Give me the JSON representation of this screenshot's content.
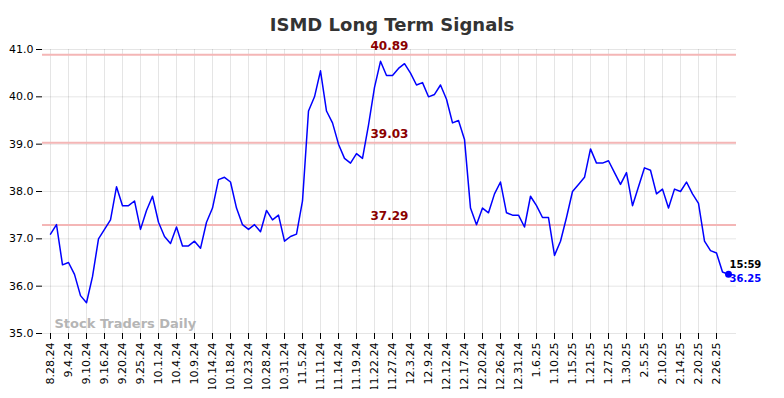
{
  "chart_data": {
    "type": "line",
    "title": "ISMD Long Term Signals",
    "categories": [
      "8.28.24",
      null,
      null,
      "9.4.24",
      null,
      null,
      "9.10.24",
      null,
      null,
      "9.16.24",
      null,
      null,
      "9.20.24",
      null,
      null,
      "9.25.24",
      null,
      null,
      "10.1.24",
      null,
      null,
      "10.4.24",
      null,
      null,
      "10.9.24",
      null,
      null,
      "10.14.24",
      null,
      null,
      "10.18.24",
      null,
      null,
      "10.23.24",
      null,
      null,
      "10.28.24",
      null,
      null,
      "10.31.24",
      null,
      null,
      "11.5.24",
      null,
      null,
      "11.11.24",
      null,
      null,
      "11.14.24",
      null,
      null,
      "11.19.24",
      null,
      null,
      "11.22.24",
      null,
      null,
      "11.27.24",
      null,
      null,
      "12.3.24",
      null,
      null,
      "12.9.24",
      null,
      null,
      "12.12.24",
      null,
      null,
      "12.17.24",
      null,
      null,
      "12.20.24",
      null,
      null,
      "12.26.24",
      null,
      null,
      "12.31.24",
      null,
      null,
      "1.6.25",
      null,
      null,
      "1.10.25",
      null,
      null,
      "1.15.25",
      null,
      null,
      "1.21.25",
      null,
      null,
      "1.27.25",
      null,
      null,
      "1.30.25",
      null,
      null,
      "2.5.25",
      null,
      null,
      "2.10.25",
      null,
      null,
      "2.14.25",
      null,
      null,
      "2.20.25",
      null,
      null,
      "2.26.25",
      null,
      null
    ],
    "values": [
      37.1,
      37.3,
      36.45,
      36.5,
      36.25,
      35.8,
      35.65,
      36.2,
      37.0,
      37.2,
      37.4,
      38.1,
      37.7,
      37.7,
      37.8,
      37.2,
      37.6,
      37.9,
      37.35,
      37.05,
      36.9,
      37.25,
      36.85,
      36.85,
      36.95,
      36.8,
      37.35,
      37.65,
      38.25,
      38.3,
      38.2,
      37.65,
      37.3,
      37.2,
      37.3,
      37.15,
      37.6,
      37.4,
      37.5,
      36.95,
      37.05,
      37.1,
      37.8,
      39.7,
      40.0,
      40.55,
      39.7,
      39.45,
      39.0,
      38.7,
      38.6,
      38.8,
      38.7,
      39.4,
      40.2,
      40.75,
      40.45,
      40.45,
      40.6,
      40.7,
      40.5,
      40.25,
      40.3,
      40.0,
      40.05,
      40.25,
      39.95,
      39.45,
      39.5,
      39.1,
      37.65,
      37.3,
      37.65,
      37.55,
      37.95,
      38.2,
      37.55,
      37.5,
      37.5,
      37.25,
      37.9,
      37.7,
      37.45,
      37.45,
      36.65,
      36.95,
      37.45,
      38.0,
      38.15,
      38.3,
      38.9,
      38.6,
      38.6,
      38.65,
      38.4,
      38.15,
      38.4,
      37.7,
      38.1,
      38.5,
      38.45,
      37.95,
      38.05,
      37.65,
      38.05,
      38.0,
      38.2,
      37.95,
      37.75,
      36.95,
      36.75,
      36.7,
      36.3,
      36.25
    ],
    "color": "#0000ff",
    "ylim": [
      35,
      41
    ],
    "yticks": [
      35,
      36,
      37,
      38,
      39,
      40,
      41
    ],
    "grid": true,
    "hlines": [
      40.89,
      39.03,
      37.29
    ],
    "time_label": "15:59",
    "watermark": "Stock Traders Daily"
  }
}
